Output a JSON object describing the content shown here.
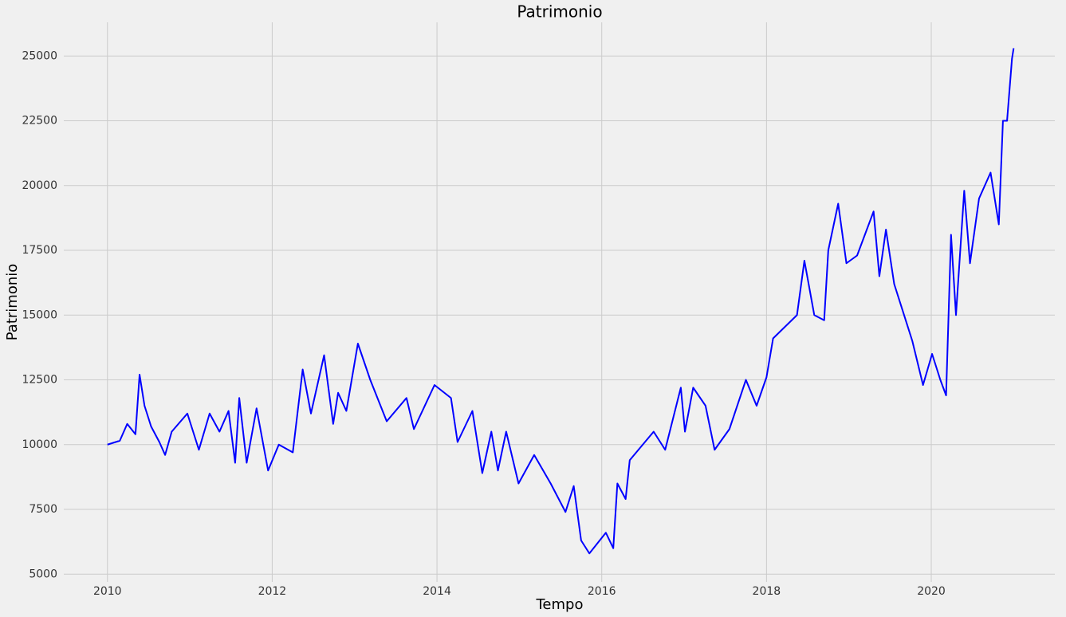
{
  "chart_data": {
    "type": "line",
    "title": "Patrimonio",
    "x_label": "Tempo",
    "y_label": "Patrimonio",
    "x": [
      2010.0,
      2010.15,
      2010.24,
      2010.34,
      2010.39,
      2010.45,
      2010.53,
      2010.63,
      2010.7,
      2010.78,
      2010.97,
      2011.11,
      2011.24,
      2011.36,
      2011.47,
      2011.55,
      2011.6,
      2011.69,
      2011.81,
      2011.95,
      2012.08,
      2012.25,
      2012.37,
      2012.47,
      2012.63,
      2012.74,
      2012.8,
      2012.9,
      2013.04,
      2013.19,
      2013.39,
      2013.63,
      2013.72,
      2013.97,
      2014.17,
      2014.25,
      2014.43,
      2014.55,
      2014.66,
      2014.74,
      2014.84,
      2014.99,
      2015.18,
      2015.38,
      2015.56,
      2015.66,
      2015.75,
      2015.85,
      2015.95,
      2016.05,
      2016.14,
      2016.19,
      2016.29,
      2016.34,
      2016.63,
      2016.77,
      2016.96,
      2017.01,
      2017.11,
      2017.26,
      2017.37,
      2017.55,
      2017.75,
      2017.88,
      2018.0,
      2018.08,
      2018.37,
      2018.46,
      2018.58,
      2018.7,
      2018.75,
      2018.87,
      2018.97,
      2019.1,
      2019.3,
      2019.37,
      2019.45,
      2019.55,
      2019.77,
      2019.9,
      2020.01,
      2020.11,
      2020.18,
      2020.24,
      2020.3,
      2020.4,
      2020.47,
      2020.58,
      2020.72,
      2020.82,
      2020.87,
      2020.92,
      2020.98,
      2021.0
    ],
    "series": [
      {
        "name": "Patrimonio",
        "color": "#0000ff",
        "values": [
          10000,
          10150,
          10800,
          10400,
          12700,
          11500,
          10700,
          10100,
          9600,
          10500,
          11200,
          9800,
          11200,
          10500,
          11300,
          9300,
          11800,
          9300,
          11400,
          9000,
          10000,
          9700,
          12900,
          11200,
          13450,
          10800,
          12000,
          11300,
          13900,
          12500,
          10900,
          11800,
          10600,
          12300,
          11800,
          10100,
          11300,
          8900,
          10500,
          9000,
          10500,
          8500,
          9600,
          8500,
          7400,
          8400,
          6300,
          5800,
          6200,
          6600,
          6000,
          8500,
          7900,
          9400,
          10500,
          9800,
          12200,
          10500,
          12200,
          11500,
          9800,
          10600,
          12500,
          11500,
          12600,
          14100,
          15000,
          17100,
          15000,
          14800,
          17500,
          19300,
          17000,
          17300,
          19000,
          16500,
          18300,
          16200,
          14000,
          12300,
          13500,
          12500,
          11900,
          18100,
          15000,
          19800,
          17000,
          19500,
          20500,
          18500,
          22500,
          22500,
          24900,
          25300
        ]
      }
    ],
    "xlim": [
      2009.47,
      2021.5
    ],
    "ylim": [
      4700,
      26300
    ],
    "xticks": [
      2010,
      2012,
      2014,
      2016,
      2018,
      2020
    ],
    "yticks": [
      5000,
      7500,
      10000,
      12500,
      15000,
      17500,
      20000,
      22500,
      25000
    ],
    "grid": true
  }
}
